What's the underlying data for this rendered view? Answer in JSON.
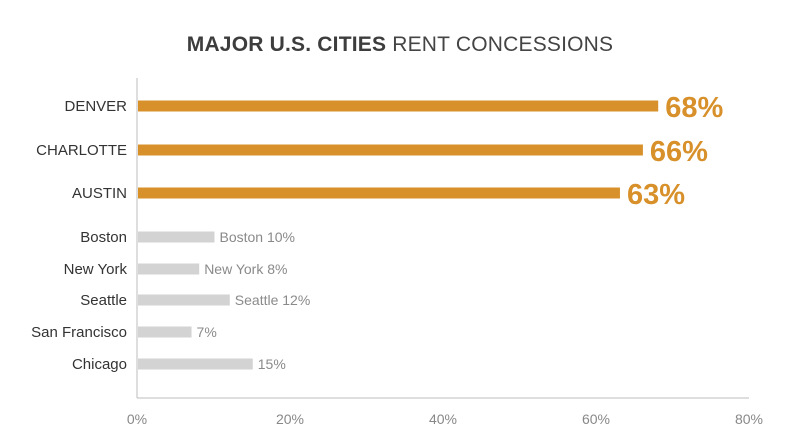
{
  "chart_data": {
    "type": "bar",
    "orientation": "horizontal",
    "title_bold": "MAJOR U.S. CITIES",
    "title_rest": "RENT CONCESSIONS",
    "categories": [
      "DENVER",
      "CHARLOTTE",
      "AUSTIN",
      "Boston",
      "New York",
      "Seattle",
      "San Francisco",
      "Chicago"
    ],
    "values": [
      68,
      66,
      63,
      10,
      8,
      12,
      7,
      15
    ],
    "data_labels": [
      "68%",
      "66%",
      "63%",
      "Boston 10%",
      "New York 8%",
      "Seattle 12%",
      "7%",
      "15%"
    ],
    "highlighted": [
      true,
      true,
      true,
      false,
      false,
      false,
      false,
      false
    ],
    "xlim": [
      0,
      80
    ],
    "xticks": [
      0,
      20,
      40,
      60,
      80
    ],
    "xtick_labels": [
      "0%",
      "20%",
      "40%",
      "60%",
      "80%"
    ],
    "grid": false,
    "colors": {
      "highlight": "#D8902A",
      "muted": "#D3D3D3",
      "axis": "#BDBDBD",
      "category_text": "#333333",
      "muted_label": "#8a8a8a",
      "tick_text": "#888888"
    }
  }
}
